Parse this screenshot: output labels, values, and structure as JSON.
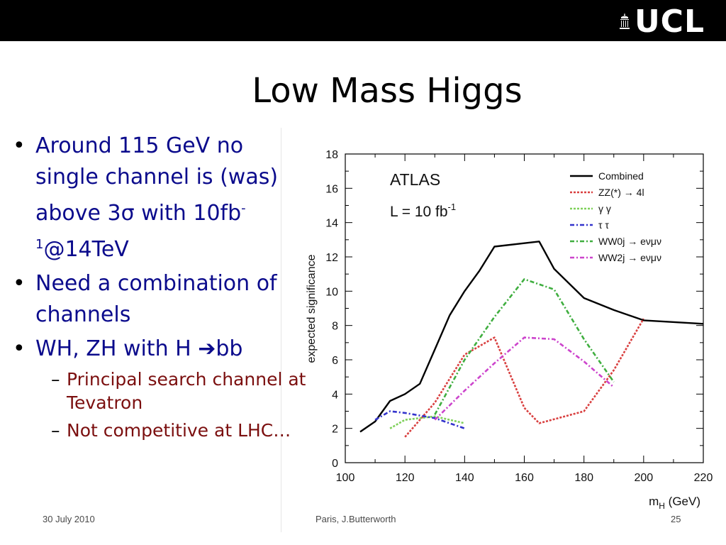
{
  "header": {
    "logo_text": "UCL"
  },
  "title": "Low Mass Higgs",
  "bullets": [
    {
      "pre": "Around 115 GeV no single channel is (was) above 3",
      "sym": "σ",
      "mid": " with 10fb",
      "sup": "-1",
      "post": "@14TeV"
    },
    {
      "text": "Need a combination of channels"
    },
    {
      "pre": "WH, ZH with H ",
      "arrow": "➔",
      "post": "bb"
    }
  ],
  "subbullets": [
    "Principal search channel at Tevatron",
    "Not competitive at LHC…"
  ],
  "footer": {
    "date": "30 July 2010",
    "author": "Paris, J.Butterworth",
    "page": "25"
  },
  "chart_data": {
    "type": "line",
    "ylabel": "expected significance",
    "xlabel_main": "m",
    "xlabel_sub": "H",
    "xlabel_unit": " (GeV)",
    "xlim": [
      100,
      220
    ],
    "ylim": [
      0,
      18
    ],
    "xticks": [
      100,
      120,
      140,
      160,
      180,
      200,
      220
    ],
    "yticks": [
      0,
      2,
      4,
      6,
      8,
      10,
      12,
      14,
      16,
      18
    ],
    "annotation_atlas": "ATLAS",
    "annotation_lumi": "L = 10 fb",
    "annotation_lumi_sup": "-1",
    "legend_placement": "top-right",
    "series": [
      {
        "name": "Combined",
        "color": "#000000",
        "dash": "solid",
        "x": [
          105,
          110,
          115,
          120,
          125,
          130,
          135,
          140,
          145,
          150,
          160,
          165,
          170,
          180,
          190,
          200,
          220
        ],
        "y": [
          1.8,
          2.4,
          3.6,
          4.0,
          4.6,
          6.6,
          8.6,
          10.0,
          11.2,
          12.6,
          12.8,
          12.9,
          11.3,
          9.6,
          8.9,
          8.3,
          8.1
        ]
      },
      {
        "name": "ZZ(*) → 4l",
        "color": "#d94040",
        "dash": "dotted",
        "x": [
          120,
          130,
          140,
          150,
          160,
          165,
          180,
          190,
          200
        ],
        "y": [
          1.5,
          3.5,
          6.3,
          7.3,
          3.2,
          2.3,
          3.0,
          5.4,
          8.4
        ]
      },
      {
        "name": "γ γ",
        "color": "#7fd15a",
        "dash": "dotted",
        "x": [
          115,
          120,
          130,
          140
        ],
        "y": [
          2.0,
          2.5,
          2.7,
          2.3
        ]
      },
      {
        "name": "τ τ",
        "color": "#3333cc",
        "dash": "dashdot",
        "x": [
          110,
          115,
          120,
          130,
          140
        ],
        "y": [
          2.5,
          3.0,
          2.9,
          2.6,
          2.0
        ]
      },
      {
        "name": "WW0j → eνμν",
        "color": "#3fae3f",
        "dash": "dashdot",
        "x": [
          130,
          140,
          150,
          160,
          170,
          180,
          190
        ],
        "y": [
          2.8,
          6.0,
          8.5,
          10.7,
          10.1,
          7.2,
          4.7
        ]
      },
      {
        "name": "WW2j → eνμν",
        "color": "#cc44cc",
        "dash": "dashdot",
        "x": [
          130,
          140,
          150,
          160,
          170,
          180,
          190
        ],
        "y": [
          2.5,
          4.2,
          5.8,
          7.3,
          7.2,
          5.9,
          4.4
        ]
      }
    ]
  }
}
